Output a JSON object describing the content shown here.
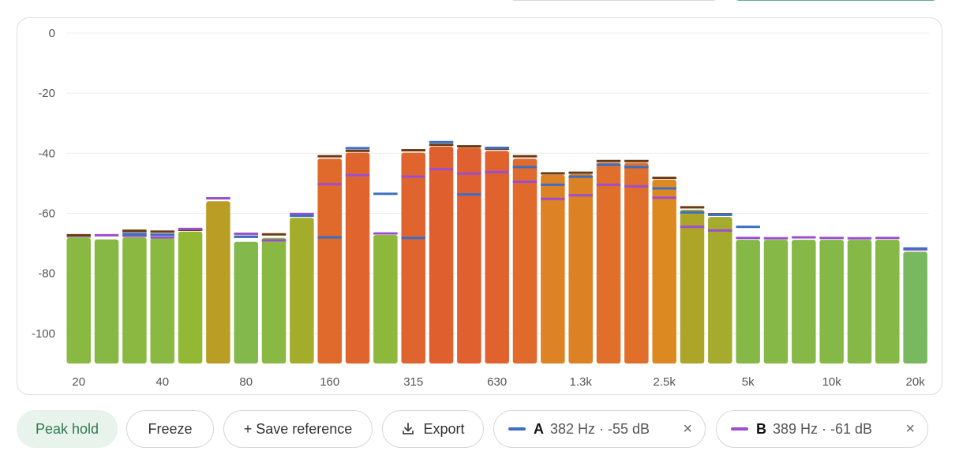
{
  "chart_data": {
    "type": "bar",
    "title": "",
    "xlabel": "",
    "ylabel": "",
    "ylim": [
      -110,
      0
    ],
    "yticks": [
      0,
      -20,
      -40,
      -60,
      -80,
      -100
    ],
    "x_labels": [
      "20",
      "40",
      "80",
      "160",
      "315",
      "630",
      "1.3k",
      "2.5k",
      "5k",
      "10k",
      "20k"
    ],
    "x_label_bands": [
      0,
      3,
      6,
      9,
      12,
      15,
      18,
      21,
      24,
      27,
      30
    ],
    "grid": true,
    "bands": [
      {
        "level": -68.2,
        "peak": -67.3,
        "ref": -67.8,
        "a": null,
        "b": null
      },
      {
        "level": -68.7,
        "peak": null,
        "ref": null,
        "a": null,
        "b": -67.3
      },
      {
        "level": -68.0,
        "peak": -65.8,
        "ref": -66.5,
        "a": -67.0,
        "b": -67.5
      },
      {
        "level": -68.2,
        "peak": -66.1,
        "ref": null,
        "a": -67.1,
        "b": -68.0
      },
      {
        "level": -66.1,
        "peak": -65.5,
        "ref": null,
        "a": null,
        "b": -65.2
      },
      {
        "level": -56.0,
        "peak": null,
        "ref": null,
        "a": null,
        "b": -55.0
      },
      {
        "level": -69.5,
        "peak": -67.8,
        "ref": null,
        "a": -67.8,
        "b": -66.8
      },
      {
        "level": -68.2,
        "peak": -67.0,
        "ref": null,
        "a": null,
        "b": -69.0
      },
      {
        "level": -61.5,
        "peak": null,
        "ref": null,
        "a": -60.8,
        "b": -60.2
      },
      {
        "level": -41.8,
        "peak": -41.0,
        "ref": null,
        "a": -68.0,
        "b": -50.3
      },
      {
        "level": -39.8,
        "peak": -39.2,
        "ref": null,
        "a": -38.3,
        "b": -47.3
      },
      {
        "level": -67.2,
        "peak": null,
        "ref": null,
        "a": -53.5,
        "b": -66.7
      },
      {
        "level": -39.8,
        "peak": -39.0,
        "ref": null,
        "a": -68.2,
        "b": -47.8
      },
      {
        "level": -37.8,
        "peak": -37.2,
        "ref": null,
        "a": -36.3,
        "b": -45.3
      },
      {
        "level": -38.2,
        "peak": -37.7,
        "ref": null,
        "a": -53.7,
        "b": -46.8
      },
      {
        "level": -39.2,
        "peak": -38.5,
        "ref": null,
        "a": -38.2,
        "b": -46.3
      },
      {
        "level": -41.8,
        "peak": -41.0,
        "ref": null,
        "a": -44.6,
        "b": -49.5
      },
      {
        "level": -47.2,
        "peak": -46.7,
        "ref": null,
        "a": -50.5,
        "b": -55.2
      },
      {
        "level": -47.0,
        "peak": -46.5,
        "ref": null,
        "a": -47.8,
        "b": -54.0
      },
      {
        "level": -43.2,
        "peak": -42.6,
        "ref": null,
        "a": -43.8,
        "b": -50.5
      },
      {
        "level": -43.2,
        "peak": -42.6,
        "ref": null,
        "a": -44.6,
        "b": -51.0
      },
      {
        "level": -48.8,
        "peak": -48.2,
        "ref": null,
        "a": -51.7,
        "b": -54.8
      },
      {
        "level": -58.8,
        "peak": -58.0,
        "ref": null,
        "a": -59.7,
        "b": -64.5
      },
      {
        "level": -61.2,
        "peak": -60.3,
        "ref": null,
        "a": -60.5,
        "b": -65.7
      },
      {
        "level": -68.8,
        "peak": null,
        "ref": null,
        "a": -64.5,
        "b": -68.2
      },
      {
        "level": -68.8,
        "peak": null,
        "ref": null,
        "a": null,
        "b": -68.3
      },
      {
        "level": -68.8,
        "peak": null,
        "ref": null,
        "a": null,
        "b": -68.0
      },
      {
        "level": -68.8,
        "peak": null,
        "ref": null,
        "a": null,
        "b": -68.2
      },
      {
        "level": -68.8,
        "peak": null,
        "ref": null,
        "a": null,
        "b": -68.3
      },
      {
        "level": -68.8,
        "peak": null,
        "ref": null,
        "a": null,
        "b": -68.2
      },
      {
        "level": -72.8,
        "peak": null,
        "ref": null,
        "a": -71.7,
        "b": -72.0
      }
    ]
  },
  "colors": {
    "line_a": "#3b6fc4",
    "line_b": "#9b4fcf",
    "peak": "#6b3a12",
    "ref": "#9a9a9a",
    "grid": "#ececec"
  },
  "controls": {
    "peak_hold": "Peak hold",
    "freeze": "Freeze",
    "save_reference": "+ Save reference",
    "export": "Export",
    "cursor_a": {
      "letter": "A",
      "value": "382 Hz · -55 dB"
    },
    "cursor_b": {
      "letter": "B",
      "value": "389 Hz · -61 dB"
    },
    "close": "×"
  }
}
